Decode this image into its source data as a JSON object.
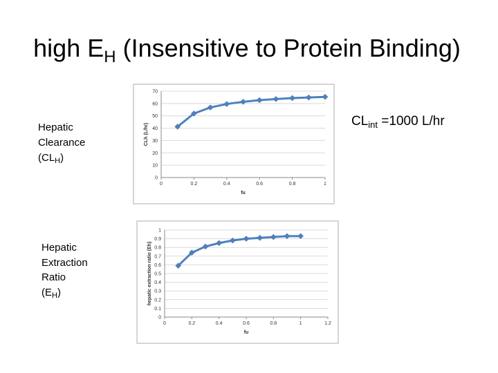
{
  "title": {
    "prefix": "high E",
    "sub": "H",
    "suffix": " (Insensitive to Protein Binding)"
  },
  "clearance_label": {
    "lines": [
      "Hepatic",
      "Clearance"
    ],
    "last": "(CL",
    "sub": "H",
    "end": ")"
  },
  "extraction_label": {
    "lines": [
      "Hepatic",
      "Extraction",
      "Ratio"
    ],
    "last": "(E",
    "sub": "H",
    "end": ")"
  },
  "clint_note": {
    "prefix": "CL",
    "sub": "int",
    "suffix": " =1000 L/hr"
  },
  "chart_data": [
    {
      "type": "line",
      "x_label": "fu",
      "y_label": "CLh (L/hr)",
      "x": [
        0.1,
        0.2,
        0.3,
        0.4,
        0.5,
        0.6,
        0.7,
        0.8,
        0.9,
        1.0
      ],
      "values": [
        41.2,
        51.9,
        56.8,
        59.6,
        61.4,
        62.7,
        63.6,
        64.4,
        64.9,
        65.4
      ],
      "color": "#4f81bd",
      "xlim": [
        0,
        1
      ],
      "xticks": [
        0,
        0.2,
        0.4,
        0.6,
        0.8,
        1
      ],
      "ylim": [
        0,
        70
      ],
      "yticks": [
        0,
        10,
        20,
        30,
        40,
        50,
        60,
        70
      ],
      "grid": true
    },
    {
      "type": "line",
      "x_label": "fu",
      "y_label": "hepatic extraction ratio (Eh)",
      "x": [
        0.1,
        0.2,
        0.3,
        0.4,
        0.5,
        0.6,
        0.7,
        0.8,
        0.9,
        1.0
      ],
      "values": [
        0.59,
        0.74,
        0.81,
        0.85,
        0.88,
        0.9,
        0.91,
        0.92,
        0.93,
        0.93
      ],
      "color": "#4f81bd",
      "xlim": [
        0,
        1.2
      ],
      "xticks": [
        0,
        0.2,
        0.4,
        0.6,
        0.8,
        1,
        1.2
      ],
      "ylim": [
        0,
        1
      ],
      "yticks": [
        0,
        0.1,
        0.2,
        0.3,
        0.4,
        0.5,
        0.6,
        0.7,
        0.8,
        0.9,
        1
      ],
      "grid": true
    }
  ]
}
